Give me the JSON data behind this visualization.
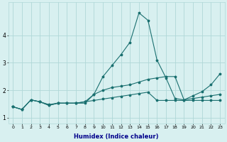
{
  "xlabel": "Humidex (Indice chaleur)",
  "x": [
    0,
    1,
    2,
    3,
    4,
    5,
    6,
    7,
    8,
    9,
    10,
    11,
    12,
    13,
    14,
    15,
    16,
    17,
    18,
    19,
    20,
    21,
    22,
    23
  ],
  "line1": [
    1.4,
    1.3,
    1.65,
    1.58,
    1.48,
    1.53,
    1.53,
    1.53,
    1.53,
    1.85,
    2.5,
    2.9,
    3.3,
    3.75,
    4.82,
    4.55,
    3.1,
    2.45,
    1.7,
    1.65,
    1.8,
    1.95,
    2.2,
    2.6
  ],
  "line2": [
    1.4,
    1.3,
    1.65,
    1.58,
    1.45,
    1.53,
    1.53,
    1.53,
    1.58,
    1.85,
    2.0,
    2.1,
    2.15,
    2.2,
    2.3,
    2.4,
    2.45,
    2.5,
    2.5,
    1.65,
    1.7,
    1.75,
    1.8,
    1.85
  ],
  "line3": [
    1.4,
    1.3,
    1.65,
    1.58,
    1.45,
    1.53,
    1.53,
    1.53,
    1.58,
    1.63,
    1.68,
    1.73,
    1.78,
    1.83,
    1.88,
    1.93,
    1.63,
    1.63,
    1.63,
    1.63,
    1.63,
    1.63,
    1.63,
    1.63
  ],
  "color": "#1a7070",
  "bg_color": "#d8f0f0",
  "grid_color": "#b0d8d8",
  "ylim": [
    0.8,
    5.2
  ],
  "xlim": [
    -0.5,
    23.5
  ],
  "xlabel_color": "#00008b"
}
